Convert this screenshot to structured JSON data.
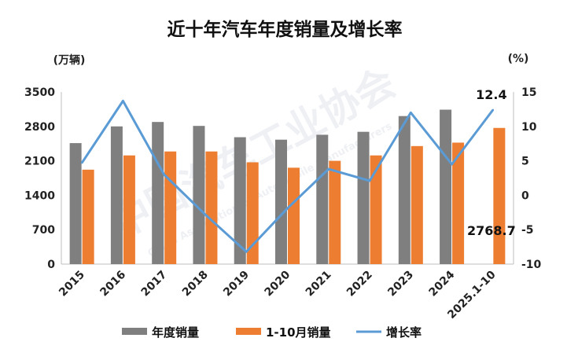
{
  "chart_data": {
    "type": "bar",
    "title": "近十年汽车年度销量及增长率",
    "left_axis_unit": "(万辆)",
    "right_axis_unit": "(%)",
    "categories": [
      "2015",
      "2016",
      "2017",
      "2018",
      "2019",
      "2020",
      "2021",
      "2022",
      "2023",
      "2024",
      "2025.1-10"
    ],
    "series": [
      {
        "name": "年度销量",
        "kind": "bar",
        "axis": "left",
        "color": "#7f7f7f",
        "values": [
          2460,
          2800,
          2890,
          2810,
          2580,
          2530,
          2630,
          2690,
          3010,
          3140,
          null
        ]
      },
      {
        "name": "1-10月销量",
        "kind": "bar",
        "axis": "left",
        "color": "#ed7d31",
        "values": [
          1920,
          2210,
          2290,
          2290,
          2070,
          1960,
          2100,
          2210,
          2400,
          2470,
          2768.7
        ]
      },
      {
        "name": "增长率",
        "kind": "line",
        "axis": "right",
        "color": "#5b9bd5",
        "values": [
          4.7,
          13.7,
          3.0,
          -2.8,
          -8.2,
          -1.9,
          3.8,
          2.1,
          12.0,
          4.5,
          12.4
        ]
      }
    ],
    "ylim_left": [
      0,
      3500
    ],
    "yticks_left": [
      "0",
      "700",
      "1400",
      "2100",
      "2800",
      "3500"
    ],
    "ylim_right": [
      -10,
      15
    ],
    "yticks_right": [
      "-10",
      "-5",
      "0",
      "5",
      "10",
      "15"
    ],
    "annotations": [
      {
        "series": "增长率",
        "index": 10,
        "label": "12.4"
      },
      {
        "series": "1-10月销量",
        "index": 10,
        "label": "2768.7"
      }
    ],
    "legend_position": "bottom",
    "grid": false
  },
  "watermark": {
    "main": "中国汽车工业协会",
    "sub": "China Association of Automobile Manufacturers"
  }
}
